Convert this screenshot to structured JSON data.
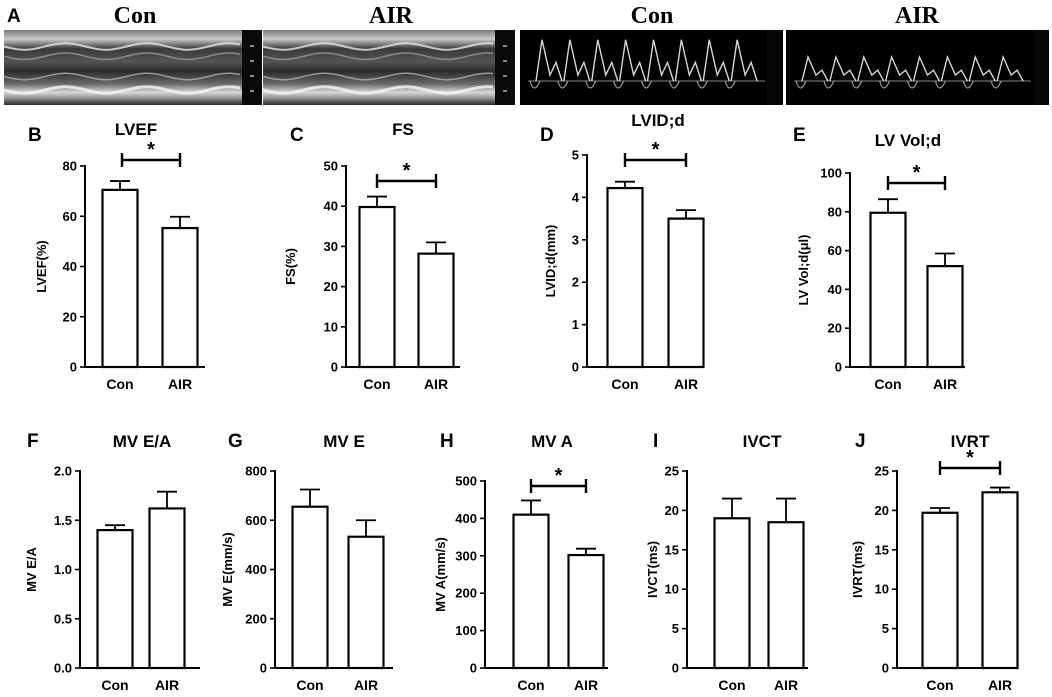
{
  "figure": {
    "panel_a": {
      "letter": "A",
      "images": [
        {
          "label": "Con",
          "kind": "m-mode"
        },
        {
          "label": "AIR",
          "kind": "m-mode"
        },
        {
          "label": "Con",
          "kind": "doppler"
        },
        {
          "label": "AIR",
          "kind": "doppler"
        }
      ]
    }
  },
  "chart_data": [
    {
      "id": "B",
      "type": "bar",
      "title": "LVEF",
      "xlabel": "",
      "ylabel": "LVEF(%)",
      "categories": [
        "Con",
        "AIR"
      ],
      "values": [
        70.5,
        55.3
      ],
      "errors": [
        3.5,
        4.5
      ],
      "ylim": [
        0,
        80
      ],
      "yticks": [
        "0",
        "20",
        "40",
        "60",
        "80"
      ],
      "significance": "*",
      "grid": false,
      "legend": "none"
    },
    {
      "id": "C",
      "type": "bar",
      "title": "FS",
      "xlabel": "",
      "ylabel": "FS(%)",
      "categories": [
        "Con",
        "AIR"
      ],
      "values": [
        39.8,
        28.2
      ],
      "errors": [
        2.6,
        2.8
      ],
      "ylim": [
        0,
        50
      ],
      "yticks": [
        "0",
        "10",
        "20",
        "30",
        "40",
        "50"
      ],
      "significance": "*",
      "grid": false,
      "legend": "none"
    },
    {
      "id": "D",
      "type": "bar",
      "title": "LVID;d",
      "xlabel": "",
      "ylabel": "LVID;d(mm)",
      "categories": [
        "Con",
        "AIR"
      ],
      "values": [
        4.22,
        3.5
      ],
      "errors": [
        0.15,
        0.2
      ],
      "ylim": [
        0,
        5
      ],
      "yticks": [
        "0",
        "1",
        "2",
        "3",
        "4",
        "5"
      ],
      "significance": "*",
      "grid": false,
      "legend": "none"
    },
    {
      "id": "E",
      "type": "bar",
      "title": "LV Vol;d",
      "xlabel": "",
      "ylabel": "LV Vol;d(μl)",
      "categories": [
        "Con",
        "AIR"
      ],
      "values": [
        79.5,
        52.0
      ],
      "errors": [
        7.0,
        6.5
      ],
      "ylim": [
        0,
        100
      ],
      "yticks": [
        "0",
        "20",
        "40",
        "60",
        "80",
        "100"
      ],
      "significance": "*",
      "grid": false,
      "legend": "none"
    },
    {
      "id": "F",
      "type": "bar",
      "title": "MV E/A",
      "xlabel": "",
      "ylabel": "MV E/A",
      "categories": [
        "Con",
        "AIR"
      ],
      "values": [
        1.4,
        1.62
      ],
      "errors": [
        0.05,
        0.17
      ],
      "ylim": [
        0,
        2.0
      ],
      "yticks": [
        "0.0",
        "0.5",
        "1.0",
        "1.5",
        "2.0"
      ],
      "significance": "",
      "grid": false,
      "legend": "none"
    },
    {
      "id": "G",
      "type": "bar",
      "title": "MV E",
      "xlabel": "",
      "ylabel": "MV E(mm/s)",
      "categories": [
        "Con",
        "AIR"
      ],
      "values": [
        655,
        533
      ],
      "errors": [
        70,
        67
      ],
      "ylim": [
        0,
        800
      ],
      "yticks": [
        "0",
        "200",
        "400",
        "600",
        "800"
      ],
      "significance": "",
      "grid": false,
      "legend": "none"
    },
    {
      "id": "H",
      "type": "bar",
      "title": "MV A",
      "xlabel": "",
      "ylabel": "MV A(mm/s)",
      "categories": [
        "Con",
        "AIR"
      ],
      "values": [
        410,
        302
      ],
      "errors": [
        38,
        17
      ],
      "ylim": [
        0,
        500
      ],
      "yticks": [
        "0",
        "100",
        "200",
        "300",
        "400",
        "500"
      ],
      "significance": "*",
      "grid": false,
      "legend": "none"
    },
    {
      "id": "I",
      "type": "bar",
      "title": "IVCT",
      "xlabel": "",
      "ylabel": "IVCT(ms)",
      "categories": [
        "Con",
        "AIR"
      ],
      "values": [
        19.0,
        18.5
      ],
      "errors": [
        2.5,
        3.0
      ],
      "ylim": [
        0,
        25
      ],
      "yticks": [
        "0",
        "5",
        "10",
        "15",
        "20",
        "25"
      ],
      "significance": "",
      "grid": false,
      "legend": "none"
    },
    {
      "id": "J",
      "type": "bar",
      "title": "IVRT",
      "xlabel": "",
      "ylabel": "IVRT(ms)",
      "categories": [
        "Con",
        "AIR"
      ],
      "values": [
        19.7,
        22.3
      ],
      "errors": [
        0.6,
        0.6
      ],
      "ylim": [
        0,
        25
      ],
      "yticks": [
        "0",
        "5",
        "10",
        "15",
        "20",
        "25"
      ],
      "significance": "*",
      "grid": false,
      "legend": "none"
    }
  ]
}
